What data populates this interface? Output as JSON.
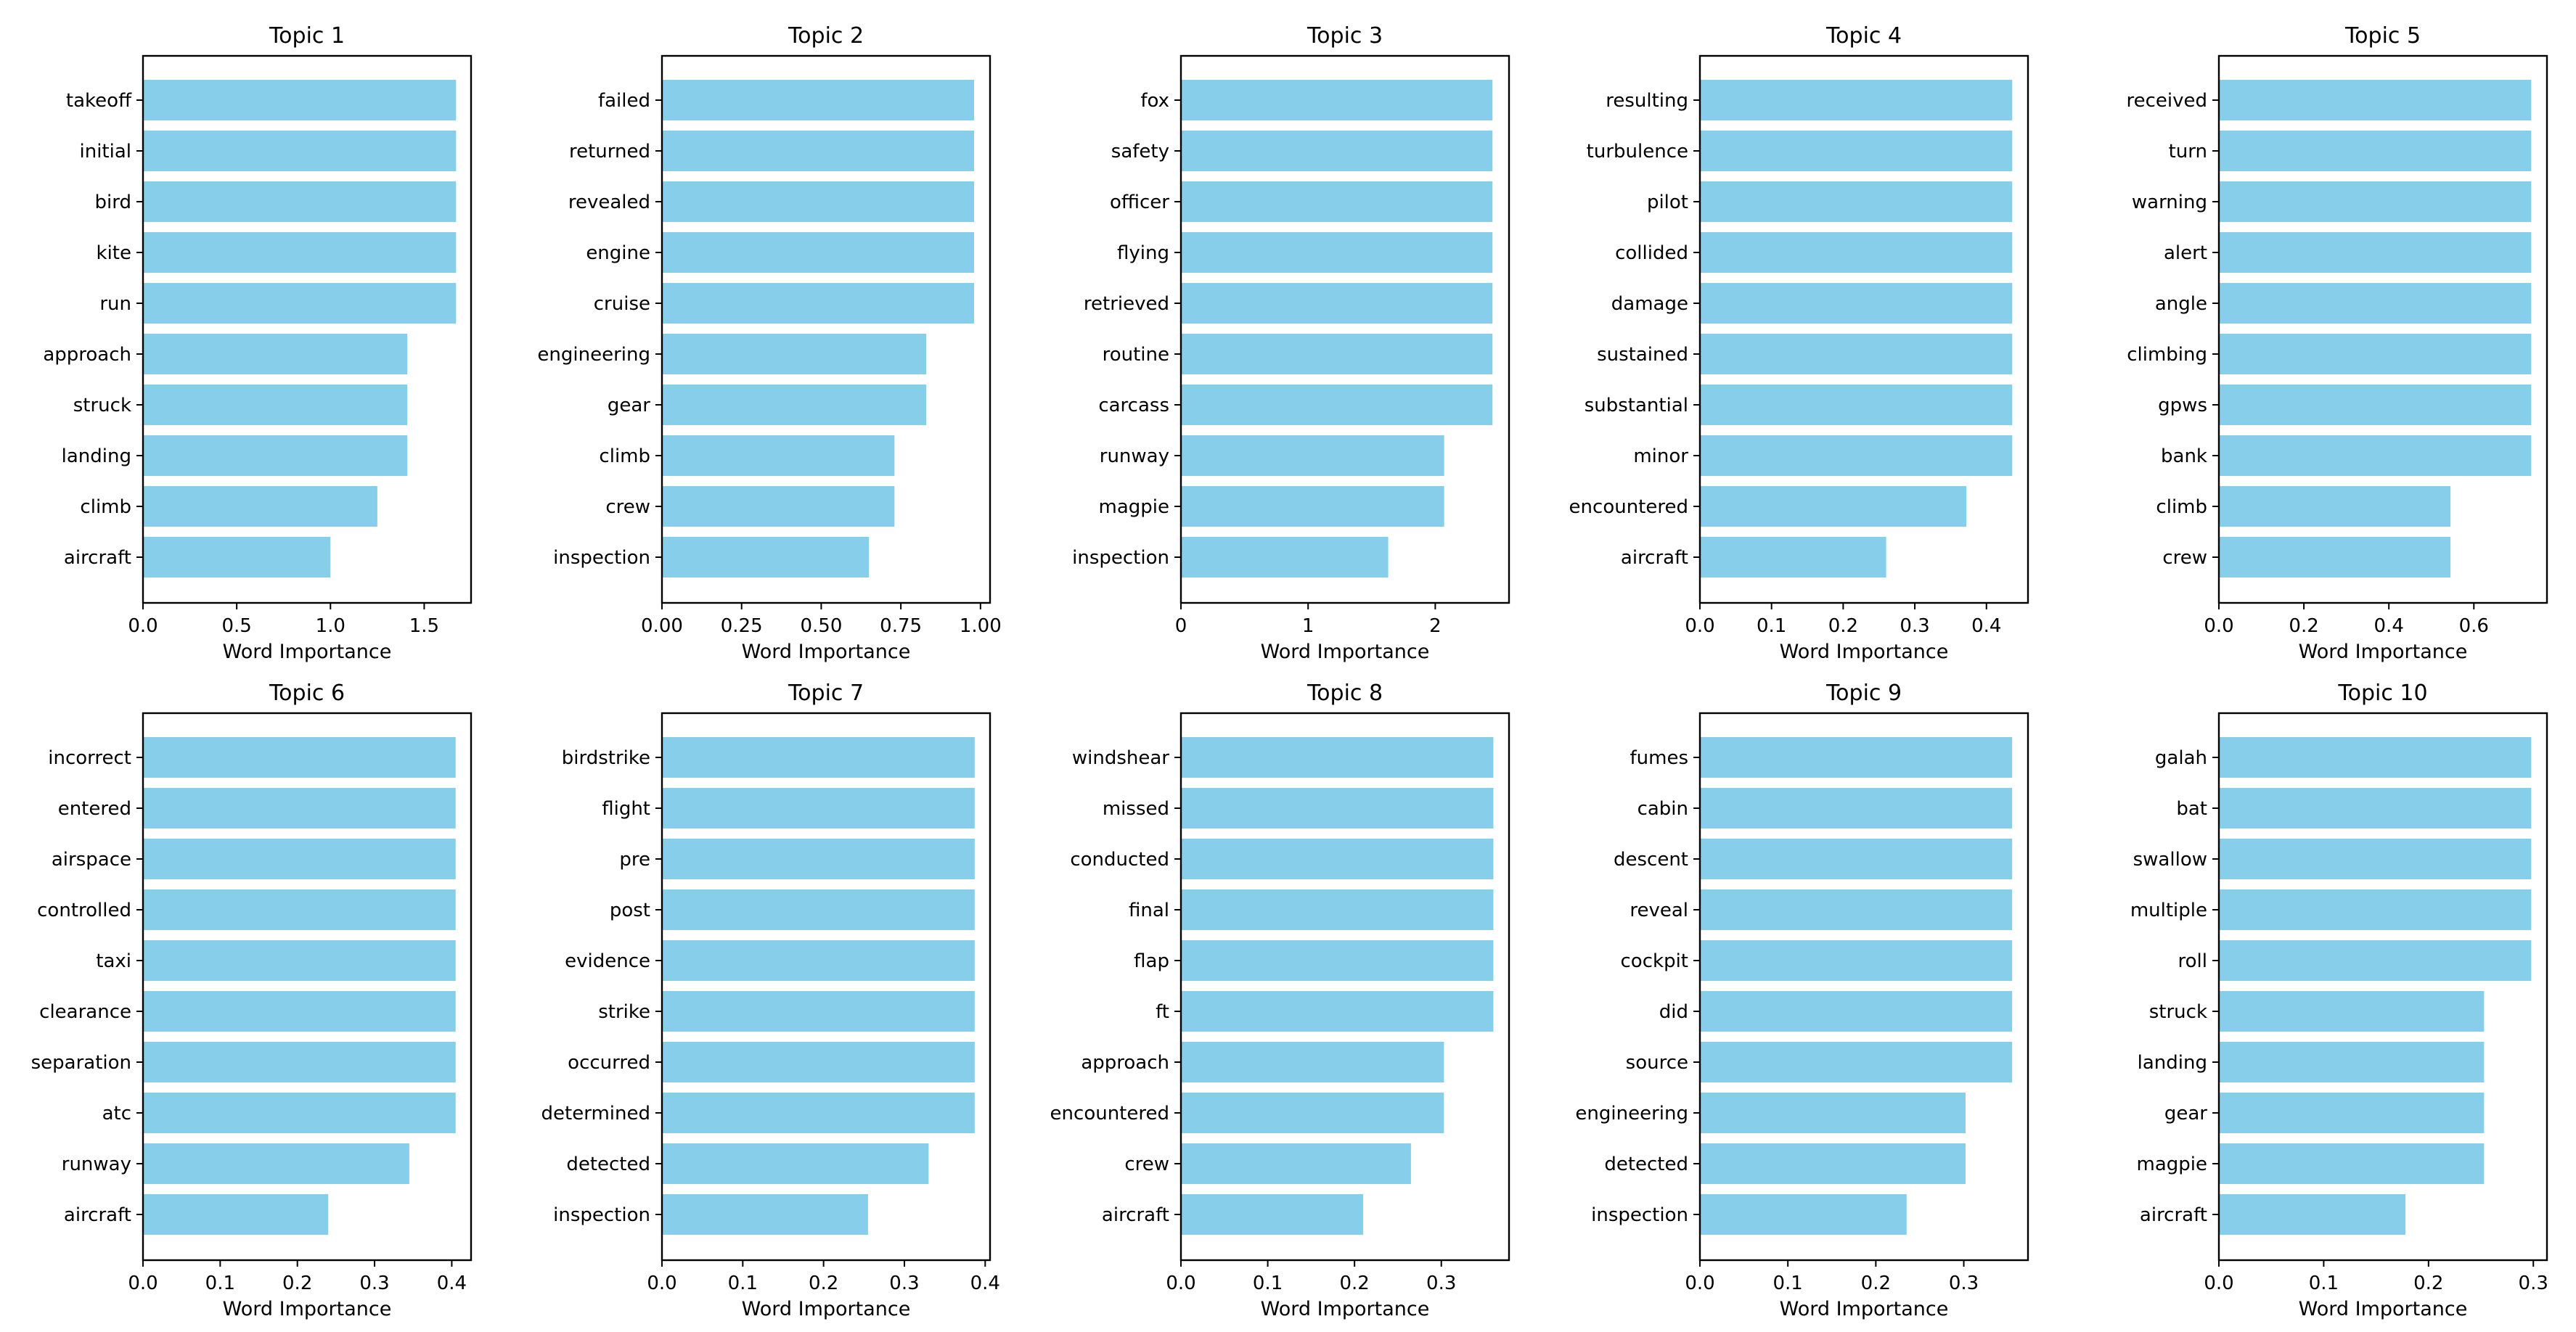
{
  "figure": {
    "bar_color": "#87ceeb",
    "background": "#ffffff"
  },
  "chart_data": [
    {
      "type": "bar",
      "orientation": "horizontal",
      "title": "Topic 1",
      "xlabel": "Word Importance",
      "ylabel": "",
      "categories": [
        "takeoff",
        "initial",
        "bird",
        "kite",
        "run",
        "approach",
        "struck",
        "landing",
        "climb",
        "aircraft"
      ],
      "values": [
        1.67,
        1.67,
        1.67,
        1.67,
        1.67,
        1.41,
        1.41,
        1.41,
        1.25,
        1.0
      ],
      "xlim": [
        0,
        1.75
      ],
      "xticks": [
        0,
        0.5,
        1.0,
        1.5
      ],
      "xtick_labels": [
        "0.0",
        "0.5",
        "1.0",
        "1.5"
      ]
    },
    {
      "type": "bar",
      "orientation": "horizontal",
      "title": "Topic 2",
      "xlabel": "Word Importance",
      "ylabel": "",
      "categories": [
        "failed",
        "returned",
        "revealed",
        "engine",
        "cruise",
        "engineering",
        "gear",
        "climb",
        "crew",
        "inspection"
      ],
      "values": [
        0.98,
        0.98,
        0.98,
        0.98,
        0.98,
        0.83,
        0.83,
        0.73,
        0.73,
        0.65
      ],
      "xlim": [
        0,
        1.03
      ],
      "xticks": [
        0,
        0.25,
        0.5,
        0.75,
        1.0
      ],
      "xtick_labels": [
        "0.00",
        "0.25",
        "0.50",
        "0.75",
        "1.00"
      ]
    },
    {
      "type": "bar",
      "orientation": "horizontal",
      "title": "Topic 3",
      "xlabel": "Word Importance",
      "ylabel": "",
      "categories": [
        "fox",
        "safety",
        "officer",
        "flying",
        "retrieved",
        "routine",
        "carcass",
        "runway",
        "magpie",
        "inspection"
      ],
      "values": [
        2.45,
        2.45,
        2.45,
        2.45,
        2.45,
        2.45,
        2.45,
        2.07,
        2.07,
        1.63
      ],
      "xlim": [
        0,
        2.58
      ],
      "xticks": [
        0,
        1,
        2
      ],
      "xtick_labels": [
        "0",
        "1",
        "2"
      ]
    },
    {
      "type": "bar",
      "orientation": "horizontal",
      "title": "Topic 4",
      "xlabel": "Word Importance",
      "ylabel": "",
      "categories": [
        "resulting",
        "turbulence",
        "pilot",
        "collided",
        "damage",
        "sustained",
        "substantial",
        "minor",
        "encountered",
        "aircraft"
      ],
      "values": [
        0.436,
        0.436,
        0.436,
        0.436,
        0.436,
        0.436,
        0.436,
        0.436,
        0.372,
        0.26
      ],
      "xlim": [
        0,
        0.458
      ],
      "xticks": [
        0,
        0.1,
        0.2,
        0.3,
        0.4
      ],
      "xtick_labels": [
        "0.0",
        "0.1",
        "0.2",
        "0.3",
        "0.4"
      ]
    },
    {
      "type": "bar",
      "orientation": "horizontal",
      "title": "Topic 5",
      "xlabel": "Word Importance",
      "ylabel": "",
      "categories": [
        "received",
        "turn",
        "warning",
        "alert",
        "angle",
        "climbing",
        "gpws",
        "bank",
        "climb",
        "crew"
      ],
      "values": [
        0.735,
        0.735,
        0.735,
        0.735,
        0.735,
        0.735,
        0.735,
        0.735,
        0.545,
        0.545
      ],
      "xlim": [
        0,
        0.772
      ],
      "xticks": [
        0,
        0.2,
        0.4,
        0.6
      ],
      "xtick_labels": [
        "0.0",
        "0.2",
        "0.4",
        "0.6"
      ]
    },
    {
      "type": "bar",
      "orientation": "horizontal",
      "title": "Topic 6",
      "xlabel": "Word Importance",
      "ylabel": "",
      "categories": [
        "incorrect",
        "entered",
        "airspace",
        "controlled",
        "taxi",
        "clearance",
        "separation",
        "atc",
        "runway",
        "aircraft"
      ],
      "values": [
        0.405,
        0.405,
        0.405,
        0.405,
        0.405,
        0.405,
        0.405,
        0.405,
        0.345,
        0.24
      ],
      "xlim": [
        0,
        0.425
      ],
      "xticks": [
        0,
        0.1,
        0.2,
        0.3,
        0.4
      ],
      "xtick_labels": [
        "0.0",
        "0.1",
        "0.2",
        "0.3",
        "0.4"
      ]
    },
    {
      "type": "bar",
      "orientation": "horizontal",
      "title": "Topic 7",
      "xlabel": "Word Importance",
      "ylabel": "",
      "categories": [
        "birdstrike",
        "flight",
        "pre",
        "post",
        "evidence",
        "strike",
        "occurred",
        "determined",
        "detected",
        "inspection"
      ],
      "values": [
        0.387,
        0.387,
        0.387,
        0.387,
        0.387,
        0.387,
        0.387,
        0.387,
        0.33,
        0.255
      ],
      "xlim": [
        0,
        0.406
      ],
      "xticks": [
        0,
        0.1,
        0.2,
        0.3,
        0.4
      ],
      "xtick_labels": [
        "0.0",
        "0.1",
        "0.2",
        "0.3",
        "0.4"
      ]
    },
    {
      "type": "bar",
      "orientation": "horizontal",
      "title": "Topic 8",
      "xlabel": "Word Importance",
      "ylabel": "",
      "categories": [
        "windshear",
        "missed",
        "conducted",
        "final",
        "flap",
        "ft",
        "approach",
        "encountered",
        "crew",
        "aircraft"
      ],
      "values": [
        0.36,
        0.36,
        0.36,
        0.36,
        0.36,
        0.36,
        0.303,
        0.303,
        0.265,
        0.21
      ],
      "xlim": [
        0,
        0.378
      ],
      "xticks": [
        0,
        0.1,
        0.2,
        0.3
      ],
      "xtick_labels": [
        "0.0",
        "0.1",
        "0.2",
        "0.3"
      ]
    },
    {
      "type": "bar",
      "orientation": "horizontal",
      "title": "Topic 9",
      "xlabel": "Word Importance",
      "ylabel": "",
      "categories": [
        "fumes",
        "cabin",
        "descent",
        "reveal",
        "cockpit",
        "did",
        "source",
        "engineering",
        "detected",
        "inspection"
      ],
      "values": [
        0.355,
        0.355,
        0.355,
        0.355,
        0.355,
        0.355,
        0.355,
        0.302,
        0.302,
        0.235
      ],
      "xlim": [
        0,
        0.373
      ],
      "xticks": [
        0,
        0.1,
        0.2,
        0.3
      ],
      "xtick_labels": [
        "0.0",
        "0.1",
        "0.2",
        "0.3"
      ]
    },
    {
      "type": "bar",
      "orientation": "horizontal",
      "title": "Topic 10",
      "xlabel": "Word Importance",
      "ylabel": "",
      "categories": [
        "galah",
        "bat",
        "swallow",
        "multiple",
        "roll",
        "struck",
        "landing",
        "gear",
        "magpie",
        "aircraft"
      ],
      "values": [
        0.298,
        0.298,
        0.298,
        0.298,
        0.298,
        0.253,
        0.253,
        0.253,
        0.253,
        0.178
      ],
      "xlim": [
        0,
        0.313
      ],
      "xticks": [
        0,
        0.1,
        0.2,
        0.3
      ],
      "xtick_labels": [
        "0.0",
        "0.1",
        "0.2",
        "0.3"
      ]
    }
  ]
}
